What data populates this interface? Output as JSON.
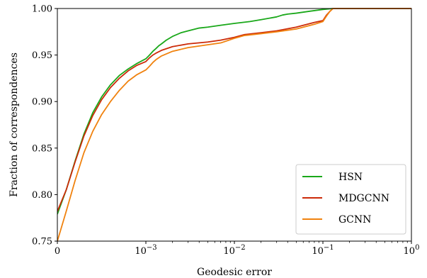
{
  "chart_data": {
    "type": "line",
    "xlabel": "Geodesic error",
    "ylabel": "Fraction of correspondences",
    "x_scale": "symlog",
    "linthresh": 0.001,
    "xlim": [
      0,
      1
    ],
    "ylim": [
      0.75,
      1.0
    ],
    "grid": false,
    "legend_position": "lower-right",
    "x_ticks": [
      {
        "value": 0,
        "base": "0",
        "exp": ""
      },
      {
        "value": 0.001,
        "base": "10",
        "exp": "−3"
      },
      {
        "value": 0.01,
        "base": "10",
        "exp": "−2"
      },
      {
        "value": 0.1,
        "base": "10",
        "exp": "−1"
      },
      {
        "value": 1,
        "base": "10",
        "exp": "0"
      }
    ],
    "y_ticks": [
      "0.75",
      "0.80",
      "0.85",
      "0.90",
      "0.95",
      "1.00"
    ],
    "y_tick_values": [
      0.75,
      0.8,
      0.85,
      0.9,
      0.95,
      1.0
    ],
    "series": [
      {
        "name": "HSN",
        "color": "#1aa81a",
        "points": [
          [
            0.0,
            0.779
          ],
          [
            0.0001,
            0.805
          ],
          [
            0.0002,
            0.836
          ],
          [
            0.0003,
            0.865
          ],
          [
            0.0004,
            0.888
          ],
          [
            0.0005,
            0.905
          ],
          [
            0.0006,
            0.918
          ],
          [
            0.0007,
            0.928
          ],
          [
            0.0008,
            0.935
          ],
          [
            0.0009,
            0.941
          ],
          [
            0.001,
            0.946
          ],
          [
            0.0011,
            0.95
          ],
          [
            0.0012,
            0.954
          ],
          [
            0.0013,
            0.957
          ],
          [
            0.0014,
            0.96
          ],
          [
            0.0015,
            0.962
          ],
          [
            0.0017,
            0.966
          ],
          [
            0.002,
            0.97
          ],
          [
            0.0025,
            0.974
          ],
          [
            0.003,
            0.976
          ],
          [
            0.004,
            0.979
          ],
          [
            0.005,
            0.98
          ],
          [
            0.007,
            0.982
          ],
          [
            0.01,
            0.984
          ],
          [
            0.015,
            0.986
          ],
          [
            0.02,
            0.988
          ],
          [
            0.03,
            0.991
          ],
          [
            0.035,
            0.993
          ],
          [
            0.04,
            0.994
          ],
          [
            0.05,
            0.995
          ],
          [
            0.07,
            0.997
          ],
          [
            0.1,
            0.999
          ],
          [
            0.13,
            1.0
          ],
          [
            0.2,
            1.0
          ],
          [
            0.5,
            1.0
          ],
          [
            1.0,
            1.0
          ]
        ]
      },
      {
        "name": "MDGCNN",
        "color": "#cc2a08",
        "points": [
          [
            0.0,
            0.782
          ],
          [
            0.0001,
            0.805
          ],
          [
            0.0002,
            0.835
          ],
          [
            0.0003,
            0.863
          ],
          [
            0.0004,
            0.885
          ],
          [
            0.0005,
            0.902
          ],
          [
            0.0006,
            0.915
          ],
          [
            0.0007,
            0.925
          ],
          [
            0.0008,
            0.933
          ],
          [
            0.0009,
            0.939
          ],
          [
            0.001,
            0.943
          ],
          [
            0.0011,
            0.947
          ],
          [
            0.0012,
            0.95
          ],
          [
            0.0013,
            0.952
          ],
          [
            0.0015,
            0.955
          ],
          [
            0.002,
            0.959
          ],
          [
            0.003,
            0.962
          ],
          [
            0.005,
            0.964
          ],
          [
            0.007,
            0.966
          ],
          [
            0.01,
            0.969
          ],
          [
            0.013,
            0.972
          ],
          [
            0.02,
            0.974
          ],
          [
            0.03,
            0.976
          ],
          [
            0.05,
            0.98
          ],
          [
            0.08,
            0.985
          ],
          [
            0.1,
            0.987
          ],
          [
            0.11,
            0.993
          ],
          [
            0.12,
            0.997
          ],
          [
            0.13,
            1.0
          ],
          [
            0.2,
            1.0
          ],
          [
            0.5,
            1.0
          ],
          [
            1.0,
            1.0
          ]
        ]
      },
      {
        "name": "GCNN",
        "color": "#f0820e",
        "points": [
          [
            0.0,
            0.75
          ],
          [
            0.0001,
            0.782
          ],
          [
            0.0002,
            0.815
          ],
          [
            0.0003,
            0.845
          ],
          [
            0.0004,
            0.868
          ],
          [
            0.0005,
            0.886
          ],
          [
            0.0006,
            0.9
          ],
          [
            0.0007,
            0.912
          ],
          [
            0.0008,
            0.922
          ],
          [
            0.0009,
            0.929
          ],
          [
            0.001,
            0.934
          ],
          [
            0.0011,
            0.938
          ],
          [
            0.0012,
            0.942
          ],
          [
            0.0013,
            0.945
          ],
          [
            0.0015,
            0.949
          ],
          [
            0.002,
            0.954
          ],
          [
            0.003,
            0.958
          ],
          [
            0.005,
            0.961
          ],
          [
            0.007,
            0.963
          ],
          [
            0.01,
            0.968
          ],
          [
            0.013,
            0.971
          ],
          [
            0.02,
            0.973
          ],
          [
            0.03,
            0.975
          ],
          [
            0.05,
            0.978
          ],
          [
            0.08,
            0.983
          ],
          [
            0.1,
            0.986
          ],
          [
            0.11,
            0.992
          ],
          [
            0.12,
            0.997
          ],
          [
            0.13,
            1.0
          ],
          [
            0.2,
            1.0
          ],
          [
            0.5,
            1.0
          ],
          [
            1.0,
            1.0
          ]
        ]
      }
    ]
  }
}
